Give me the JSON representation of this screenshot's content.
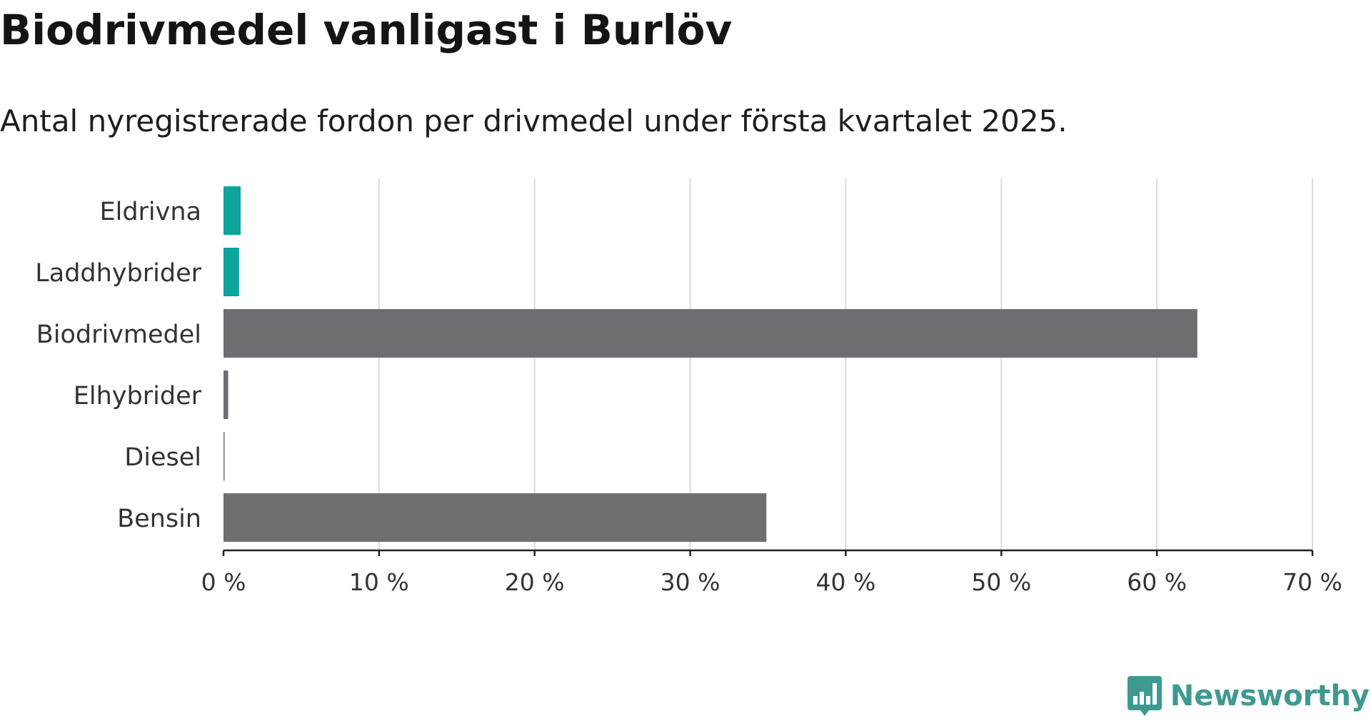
{
  "title": "Biodrivmedel vanligast i Burlöv",
  "subtitle": "Antal nyregistrerade fordon per drivmedel under första kvartalet 2025.",
  "brand": {
    "name": "Newsworthy",
    "logo_icon": "newsworthy-logo-icon",
    "color": "#3e9a91"
  },
  "chart_data": {
    "type": "bar",
    "orientation": "horizontal",
    "categories": [
      "Eldrivna",
      "Laddhybrider",
      "Biodrivmedel",
      "Elhybrider",
      "Diesel",
      "Bensin"
    ],
    "values": [
      1.1,
      1.0,
      62.6,
      0.3,
      0.05,
      34.9
    ],
    "colors": [
      "#0ca49b",
      "#0ca49b",
      "#6e6d72",
      "#6e6d72",
      "#6e6d72",
      "#6e6d72"
    ],
    "xlim": [
      0,
      70
    ],
    "xticks": [
      0,
      10,
      20,
      30,
      40,
      50,
      60,
      70
    ],
    "xtick_labels": [
      "0 %",
      "10 %",
      "20 %",
      "30 %",
      "40 %",
      "50 %",
      "60 %",
      "70 %"
    ],
    "grid": true,
    "xlabel": "",
    "ylabel": ""
  }
}
